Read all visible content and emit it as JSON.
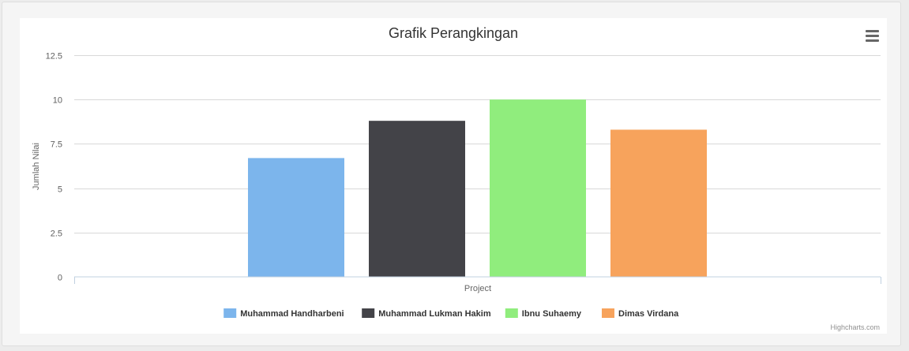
{
  "chart_data": {
    "type": "bar",
    "title": "Grafik Perangkingan",
    "xlabel": "",
    "ylabel": "Jumlah Nilai",
    "categories": [
      "Project"
    ],
    "ylim": [
      0,
      12.5
    ],
    "yticks": [
      "0",
      "2.5",
      "5",
      "7.5",
      "10",
      "12.5"
    ],
    "grid": true,
    "legend_position": "bottom",
    "series": [
      {
        "name": "Muhammad Handharbeni",
        "values": [
          6.7
        ],
        "color": "#7cb5ec"
      },
      {
        "name": "Muhammad Lukman Hakim",
        "values": [
          8.8
        ],
        "color": "#434348"
      },
      {
        "name": "Ibnu Suhaemy",
        "values": [
          10
        ],
        "color": "#90ed7d"
      },
      {
        "name": "Dimas Virdana",
        "values": [
          8.3
        ],
        "color": "#f7a35c"
      }
    ]
  },
  "menu_icon": "hamburger-menu-icon",
  "credits": "Highcharts.com"
}
